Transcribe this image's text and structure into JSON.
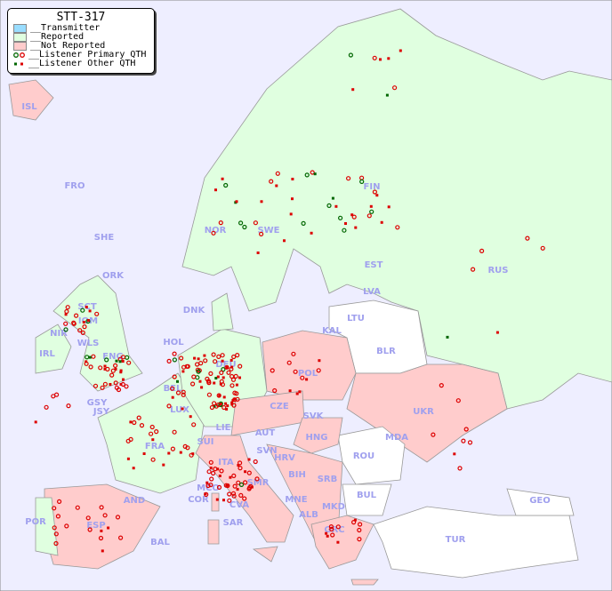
{
  "legend": {
    "title": "STT-317",
    "items": [
      {
        "label": "__Transmitter",
        "color": "#99ddff"
      },
      {
        "label": "__Reported",
        "color": "#e0ffe0"
      },
      {
        "label": "__Not Reported",
        "color": "#ffcccc"
      },
      {
        "label": "__Listener Primary QTH",
        "colors": [
          "#006600",
          "#dd0000"
        ]
      },
      {
        "label": "__Listener Other QTH",
        "colors": [
          "#006600",
          "#dd0000"
        ]
      }
    ]
  },
  "colors": {
    "sea": "#eeeeff",
    "unlisted": "#ffffff",
    "label": "#a0a0ee"
  },
  "countries": [
    "ISL",
    "FRO",
    "SHE",
    "ORK",
    "NOR",
    "SWE",
    "FIN",
    "RUS",
    "EST",
    "LVA",
    "LTU",
    "KAL",
    "BLR",
    "DNK",
    "HOL",
    "BEL",
    "LUX",
    "DEU",
    "POL",
    "CZE",
    "SVK",
    "UKR",
    "MDA",
    "AUT",
    "HNG",
    "SUI",
    "LIE",
    "FRA",
    "GSY",
    "JSY",
    "IRL",
    "IOM",
    "WLS",
    "ENG",
    "SCT",
    "NIR",
    "ITA",
    "SVN",
    "HRV",
    "BIH",
    "SRB",
    "ROU",
    "BUL",
    "MNE",
    "ALB",
    "MKD",
    "GRC",
    "TUR",
    "GEO",
    "SMR",
    "MCO",
    "COR",
    "CVA",
    "SAR",
    "AND",
    "ESP",
    "POR",
    "BAL"
  ]
}
